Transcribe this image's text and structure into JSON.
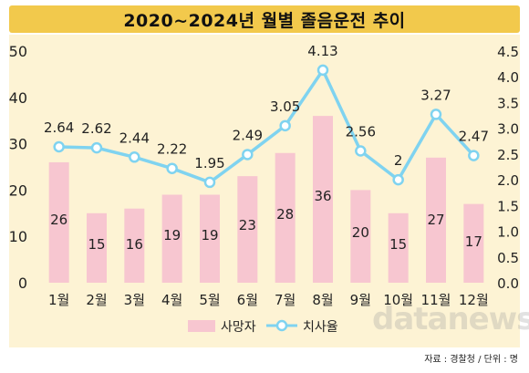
{
  "title": "2020~2024년 월별 졸음운전 추이",
  "source": "자료 : 경찰청 / 단위 : 명",
  "watermark": "datanews",
  "colors": {
    "bar": "#f7c6d0",
    "line": "#7fd3f0",
    "title_bg": "#f2c94c",
    "plot_bg": "#fdf3d4"
  },
  "chart_data": {
    "type": "bar",
    "categories": [
      "1월",
      "2월",
      "3월",
      "4월",
      "5월",
      "6월",
      "7월",
      "8월",
      "9월",
      "10월",
      "11월",
      "12월"
    ],
    "series": [
      {
        "name": "사망자",
        "type": "bar",
        "axis": "left",
        "values": [
          26,
          15,
          16,
          19,
          19,
          23,
          28,
          36,
          20,
          15,
          27,
          17
        ]
      },
      {
        "name": "치사율",
        "type": "line",
        "axis": "right",
        "values": [
          2.64,
          2.62,
          2.44,
          2.22,
          1.95,
          2.49,
          3.05,
          4.13,
          2.56,
          2,
          3.27,
          2.47
        ],
        "labels": [
          "2.64",
          "2.62",
          "2.44",
          "2.22",
          "1.95",
          "2.49",
          "3.05",
          "4.13",
          "2.56",
          "2",
          "3.27",
          "2.47"
        ]
      }
    ],
    "y_left": {
      "range": [
        0,
        50
      ],
      "ticks": [
        "0",
        "10",
        "20",
        "30",
        "40",
        "50"
      ]
    },
    "y_right": {
      "range": [
        0,
        4.5
      ],
      "ticks": [
        "0.0",
        "0.5",
        "1.0",
        "1.5",
        "2.0",
        "2.5",
        "3.0",
        "3.5",
        "4.0",
        "4.5"
      ]
    },
    "grid": false,
    "legend": "bottom-center"
  }
}
